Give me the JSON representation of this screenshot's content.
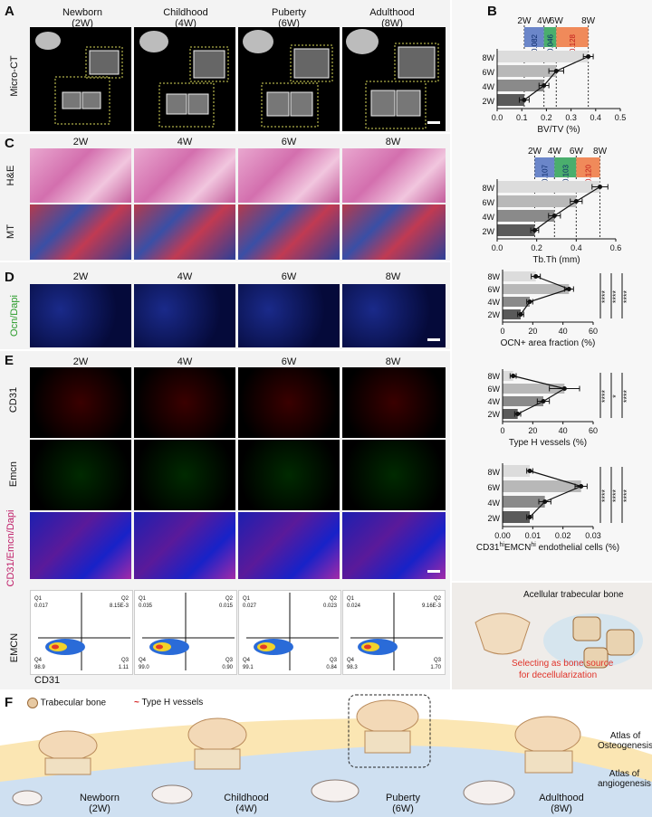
{
  "panels": {
    "A": "A",
    "B": "B",
    "C": "C",
    "D": "D",
    "E": "E",
    "F": "F"
  },
  "panelA": {
    "columns": [
      {
        "name": "Newborn",
        "age": "(2W)"
      },
      {
        "name": "Childhood",
        "age": "(4W)"
      },
      {
        "name": "Puberty",
        "age": "(6W)"
      },
      {
        "name": "Adulthood",
        "age": "(8W)"
      }
    ],
    "row_label": "Micro-CT"
  },
  "panelC": {
    "columns": [
      "2W",
      "4W",
      "6W",
      "8W"
    ],
    "rows": [
      "H&E",
      "MT"
    ]
  },
  "panelD": {
    "columns": [
      "2W",
      "4W",
      "6W",
      "8W"
    ],
    "row_label": "Ocn/Dapi"
  },
  "panelE": {
    "columns": [
      "2W",
      "4W",
      "6W",
      "8W"
    ],
    "rows": [
      "CD31",
      "Emcn",
      "CD31/Emcn/Dapi"
    ],
    "flow_axes": {
      "y": "EMCN",
      "x": "CD31"
    },
    "flow_plots": [
      {
        "Q1": "Q1",
        "q1v": "0.017",
        "Q2": "Q2",
        "q2v": "8.15E-3",
        "Q3": "Q3",
        "q3v": "1.11",
        "Q4": "Q4",
        "q4v": "98.9"
      },
      {
        "Q1": "Q1",
        "q1v": "0.035",
        "Q2": "Q2",
        "q2v": "0.015",
        "Q3": "Q3",
        "q3v": "0.90",
        "Q4": "Q4",
        "q4v": "99.0"
      },
      {
        "Q1": "Q1",
        "q1v": "0.027",
        "Q2": "Q2",
        "q2v": "0.023",
        "Q3": "Q3",
        "q3v": "0.84",
        "Q4": "Q4",
        "q4v": "99.1"
      },
      {
        "Q1": "Q1",
        "q1v": "0.024",
        "Q2": "Q2",
        "q2v": "9.16E-3",
        "Q3": "Q3",
        "q3v": "1.70",
        "Q4": "Q4",
        "q4v": "98.3"
      }
    ]
  },
  "side": {
    "acellular": "Acellular trabecular bone",
    "selecting_line1": "Selecting as bone source",
    "selecting_line2": "for decellularization"
  },
  "panelF": {
    "legend_trab": "Trabecular bone",
    "legend_typeh": "Type H vessels",
    "atlas_osteo_1": "Atlas of",
    "atlas_osteo_2": "Osteogenesis",
    "atlas_angio_1": "Atlas of",
    "atlas_angio_2": "angiogenesis",
    "stages": [
      {
        "name": "Newborn",
        "age": "(2W)"
      },
      {
        "name": "Childhood",
        "age": "(4W)"
      },
      {
        "name": "Puberty",
        "age": "(6W)"
      },
      {
        "name": "Adulthood",
        "age": "(8W)"
      }
    ]
  },
  "chart_data": [
    {
      "type": "bar",
      "categories": [
        "2W",
        "4W",
        "6W",
        "8W"
      ],
      "values": [
        0.11,
        0.19,
        0.24,
        0.37
      ],
      "errors": [
        0.02,
        0.02,
        0.03,
        0.02
      ],
      "xlabel": "BV/TV (%)",
      "xlim": [
        0,
        0.5
      ],
      "xticks": [
        "0.0",
        "0.1",
        "0.2",
        "0.3",
        "0.4",
        "0.5"
      ],
      "header_labels": [
        "2W",
        "4W",
        "6W",
        "8W"
      ],
      "diffs": [
        "0.082",
        "0.046",
        "0.128"
      ],
      "diff_colors": [
        "#6b86c9",
        "#4aae6d",
        "#f08a5a"
      ]
    },
    {
      "type": "bar",
      "categories": [
        "2W",
        "4W",
        "6W",
        "8W"
      ],
      "values": [
        0.19,
        0.29,
        0.4,
        0.52
      ],
      "errors": [
        0.02,
        0.03,
        0.03,
        0.04
      ],
      "xlabel": "Tb.Th (mm)",
      "xlim": [
        0,
        0.6
      ],
      "xticks": [
        "0.0",
        "0.2",
        "0.4",
        "0.6"
      ],
      "header_labels": [
        "2W",
        "4W",
        "6W",
        "8W"
      ],
      "diffs": [
        "0.107",
        "0.103",
        "0.120"
      ],
      "diff_colors": [
        "#6b86c9",
        "#4aae6d",
        "#f08a5a"
      ]
    },
    {
      "type": "bar",
      "categories": [
        "2W",
        "4W",
        "6W",
        "8W"
      ],
      "values": [
        12,
        18,
        44,
        22
      ],
      "errors": [
        2,
        2,
        3,
        3
      ],
      "xlabel": "OCN+ area fraction (%)",
      "xlim": [
        0,
        60
      ],
      "xticks": [
        "0",
        "20",
        "40",
        "60"
      ],
      "significance": [
        "****",
        "****",
        "****"
      ]
    },
    {
      "type": "bar",
      "categories": [
        "2W",
        "4W",
        "6W",
        "8W"
      ],
      "values": [
        10,
        27,
        41,
        7
      ],
      "errors": [
        2,
        4,
        10,
        2
      ],
      "xlabel": "Type H vessels (%)",
      "xlim": [
        0,
        60
      ],
      "xticks": [
        "0",
        "20",
        "40",
        "60"
      ],
      "significance": [
        "****",
        "*",
        "****"
      ]
    },
    {
      "type": "bar",
      "categories": [
        "2W",
        "4W",
        "6W",
        "8W"
      ],
      "values": [
        0.009,
        0.014,
        0.026,
        0.009
      ],
      "errors": [
        0.001,
        0.002,
        0.002,
        0.001
      ],
      "xlabel": "CD31hiEMCNhi endothelial cells (%)",
      "xlabel_parts": [
        "CD31",
        "hi",
        "EMCN",
        "hi",
        " endothelial cells (%)"
      ],
      "xlim": [
        0,
        0.03
      ],
      "xticks": [
        "0.00",
        "0.01",
        "0.02",
        "0.03"
      ],
      "significance": [
        "****",
        "****",
        "****"
      ]
    }
  ]
}
